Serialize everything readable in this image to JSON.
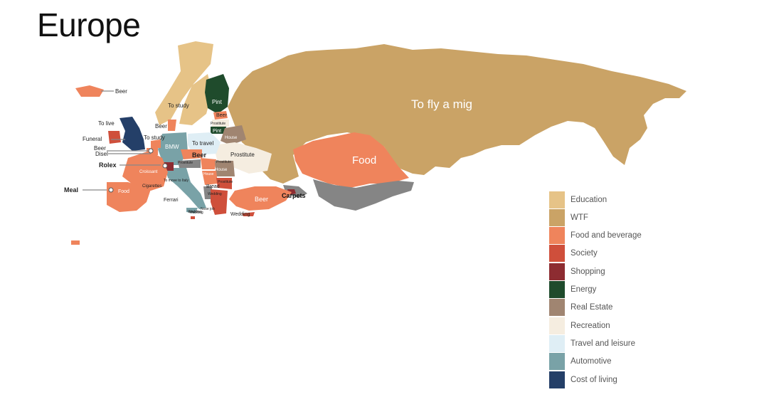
{
  "title": "Europe",
  "colors": {
    "education": "#e6c387",
    "wtf": "#caa366",
    "food": "#ef845c",
    "society": "#cf4f3b",
    "shopping": "#8d2c31",
    "energy": "#1f4b2c",
    "real_estate": "#a08571",
    "recreation": "#f5ede0",
    "travel": "#dfeef5",
    "automotive": "#79a2a7",
    "cost": "#243f68",
    "other": "#858585"
  },
  "legend": [
    {
      "label": "Education",
      "color": "#e6c387"
    },
    {
      "label": "WTF",
      "color": "#caa366"
    },
    {
      "label": "Food and beverage",
      "color": "#ef845c"
    },
    {
      "label": "Society",
      "color": "#cf4f3b"
    },
    {
      "label": "Shopping",
      "color": "#8d2c31"
    },
    {
      "label": "Energy",
      "color": "#1f4b2c"
    },
    {
      "label": "Real Estate",
      "color": "#a08571"
    },
    {
      "label": "Recreation",
      "color": "#f5ede0"
    },
    {
      "label": "Travel and leisure",
      "color": "#dfeef5"
    },
    {
      "label": "Automotive",
      "color": "#79a2a7"
    },
    {
      "label": "Cost of living",
      "color": "#243f68"
    }
  ],
  "labels": {
    "russia": "To fly a mig",
    "kazakhstan": "Food",
    "turkey": "Beer",
    "caucasus": "Carpets",
    "iceland": "Beer",
    "norway": "To study",
    "sweden": "To study",
    "finland": "Pint",
    "estonia": "Beer",
    "latvia": "Prostitute",
    "lithuania": "Pint",
    "belarus": "House",
    "ukraine": "Prostitute",
    "poland": "To travel",
    "germany": "BMW",
    "czech": "Beer",
    "austria": "Prostitute",
    "hungary": "House",
    "romania": "House",
    "serbia": "Prostitute",
    "bulgaria": "Bread",
    "greece": "Wedding",
    "cyprus": "Wedding",
    "albania": "Nose job",
    "slovenia": "To move to Italy",
    "italy": "Ferrari",
    "malta": "Wedding",
    "france": "Croissant",
    "spain": "Food",
    "portugal": "Meal",
    "andorra": "Cigarettes",
    "switzerland": "Rolex",
    "netherlands": "Beer",
    "belgium": "Disel",
    "ireland": "Funeral",
    "uk": "To live",
    "denmark": "Beer",
    "macedonia": "Wedding",
    "moldova": "Prostitute"
  }
}
